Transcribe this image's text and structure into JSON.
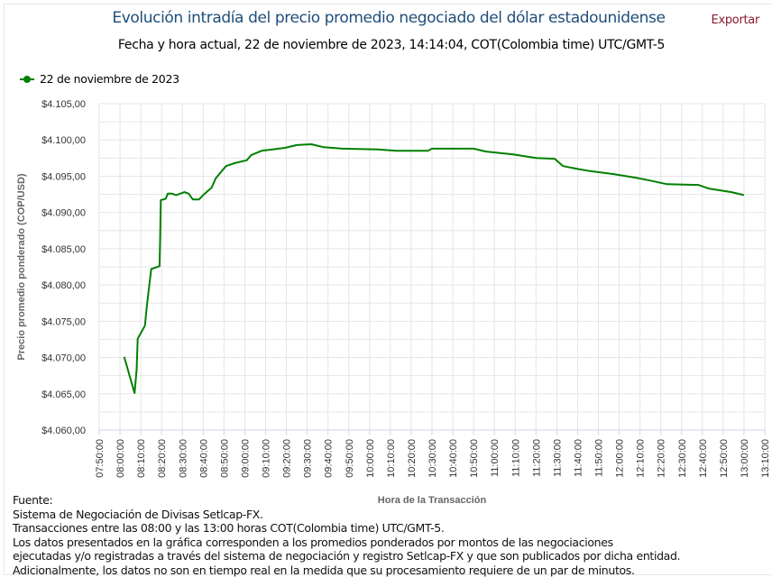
{
  "header": {
    "title": "Evolución intradía del precio promedio negociado del dólar estadounidense",
    "subtitle": "Fecha y hora actual, 22 de noviembre de 2023, 14:14:04, COT(Colombia time) UTC/GMT-5",
    "export_label": "Exportar"
  },
  "colors": {
    "series": "#008000",
    "title": "#1f4e79",
    "export": "#8b1a2b",
    "grid": "#e6e6e6"
  },
  "chart_data": {
    "type": "line",
    "title": "Evolución intradía del precio promedio negociado del dólar estadounidense",
    "subtitle": "Fecha y hora actual, 22 de noviembre de 2023, 14:14:04, COT(Colombia time) UTC/GMT-5",
    "xlabel": "Hora de la Transacción",
    "ylabel": "Precio promedio ponderado (COP/USD)",
    "xlim": [
      "07:50:00",
      "13:10:00"
    ],
    "ylim": [
      4060,
      4105
    ],
    "grid": true,
    "legend_position": "top-left",
    "x_ticks": [
      "07:50:00",
      "08:00:00",
      "08:10:00",
      "08:20:00",
      "08:30:00",
      "08:40:00",
      "08:50:00",
      "09:00:00",
      "09:10:00",
      "09:20:00",
      "09:30:00",
      "09:40:00",
      "09:50:00",
      "10:00:00",
      "10:10:00",
      "10:20:00",
      "10:30:00",
      "10:40:00",
      "10:50:00",
      "11:00:00",
      "11:10:00",
      "11:20:00",
      "11:30:00",
      "11:40:00",
      "11:50:00",
      "12:00:00",
      "12:10:00",
      "12:20:00",
      "12:30:00",
      "12:40:00",
      "12:50:00",
      "13:00:00",
      "13:10:00"
    ],
    "y_ticks": [
      {
        "value": 4105,
        "label": "$4.105,00"
      },
      {
        "value": 4100,
        "label": "$4.100,00"
      },
      {
        "value": 4095,
        "label": "$4.095,00"
      },
      {
        "value": 4090,
        "label": "$4.090,00"
      },
      {
        "value": 4085,
        "label": "$4.085,00"
      },
      {
        "value": 4080,
        "label": "$4.080,00"
      },
      {
        "value": 4075,
        "label": "$4.075,00"
      },
      {
        "value": 4070,
        "label": "$4.070,00"
      },
      {
        "value": 4065,
        "label": "$4.065,00"
      },
      {
        "value": 4060,
        "label": "$4.060,00"
      }
    ],
    "series": [
      {
        "name": "22 de noviembre de 2023",
        "points": [
          [
            "08:02",
            4070.1
          ],
          [
            "08:07",
            4065.1
          ],
          [
            "08:08",
            4068.3
          ],
          [
            "08:08.5",
            4072.6
          ],
          [
            "08:12",
            4074.4
          ],
          [
            "08:13",
            4077.3
          ],
          [
            "08:15",
            4082.2
          ],
          [
            "08:19",
            4082.6
          ],
          [
            "08:19.3",
            4086.6
          ],
          [
            "08:19.6",
            4091.7
          ],
          [
            "08:22",
            4091.9
          ],
          [
            "08:23",
            4092.6
          ],
          [
            "08:25",
            4092.6
          ],
          [
            "08:27",
            4092.4
          ],
          [
            "08:31",
            4092.8
          ],
          [
            "08:33",
            4092.6
          ],
          [
            "08:35",
            4091.8
          ],
          [
            "08:38",
            4091.8
          ],
          [
            "08:40",
            4092.4
          ],
          [
            "08:42",
            4092.9
          ],
          [
            "08:44",
            4093.4
          ],
          [
            "08:46",
            4094.7
          ],
          [
            "08:48",
            4095.4
          ],
          [
            "08:51",
            4096.4
          ],
          [
            "08:55",
            4096.8
          ],
          [
            "09:01",
            4097.2
          ],
          [
            "09:03",
            4097.9
          ],
          [
            "09:08",
            4098.5
          ],
          [
            "09:19",
            4098.9
          ],
          [
            "09:25",
            4099.3
          ],
          [
            "09:32",
            4099.4
          ],
          [
            "09:38",
            4099.0
          ],
          [
            "09:47",
            4098.8
          ],
          [
            "10:04",
            4098.7
          ],
          [
            "10:13",
            4098.5
          ],
          [
            "10:28",
            4098.5
          ],
          [
            "10:30",
            4098.8
          ],
          [
            "10:50",
            4098.8
          ],
          [
            "10:56",
            4098.4
          ],
          [
            "11:09",
            4098.0
          ],
          [
            "11:20",
            4097.5
          ],
          [
            "11:29",
            4097.4
          ],
          [
            "11:31",
            4096.9
          ],
          [
            "11:33",
            4096.4
          ],
          [
            "11:40",
            4096.0
          ],
          [
            "11:46",
            4095.7
          ],
          [
            "11:57",
            4095.3
          ],
          [
            "12:08",
            4094.8
          ],
          [
            "12:15",
            4094.4
          ],
          [
            "12:23",
            4093.9
          ],
          [
            "12:38",
            4093.8
          ],
          [
            "12:43",
            4093.3
          ],
          [
            "12:54",
            4092.8
          ],
          [
            "13:00",
            4092.4
          ]
        ]
      }
    ]
  },
  "notes": {
    "heading": "Fuente:",
    "lines": [
      "Sistema de Negociación de Divisas Setlcap-FX.",
      "Transacciones entre las 08:00 y las 13:00 horas COT(Colombia time) UTC/GMT-5.",
      "Los datos presentados en la gráfica corresponden a los promedios ponderados por montos de las negociaciones",
      "ejecutadas y/o registradas a través del sistema de negociación y registro Setlcap-FX y que son publicados por dicha entidad.",
      "Adicionalmente, los datos no son en tiempo real en la medida que su procesamiento requiere de un par de minutos."
    ]
  }
}
